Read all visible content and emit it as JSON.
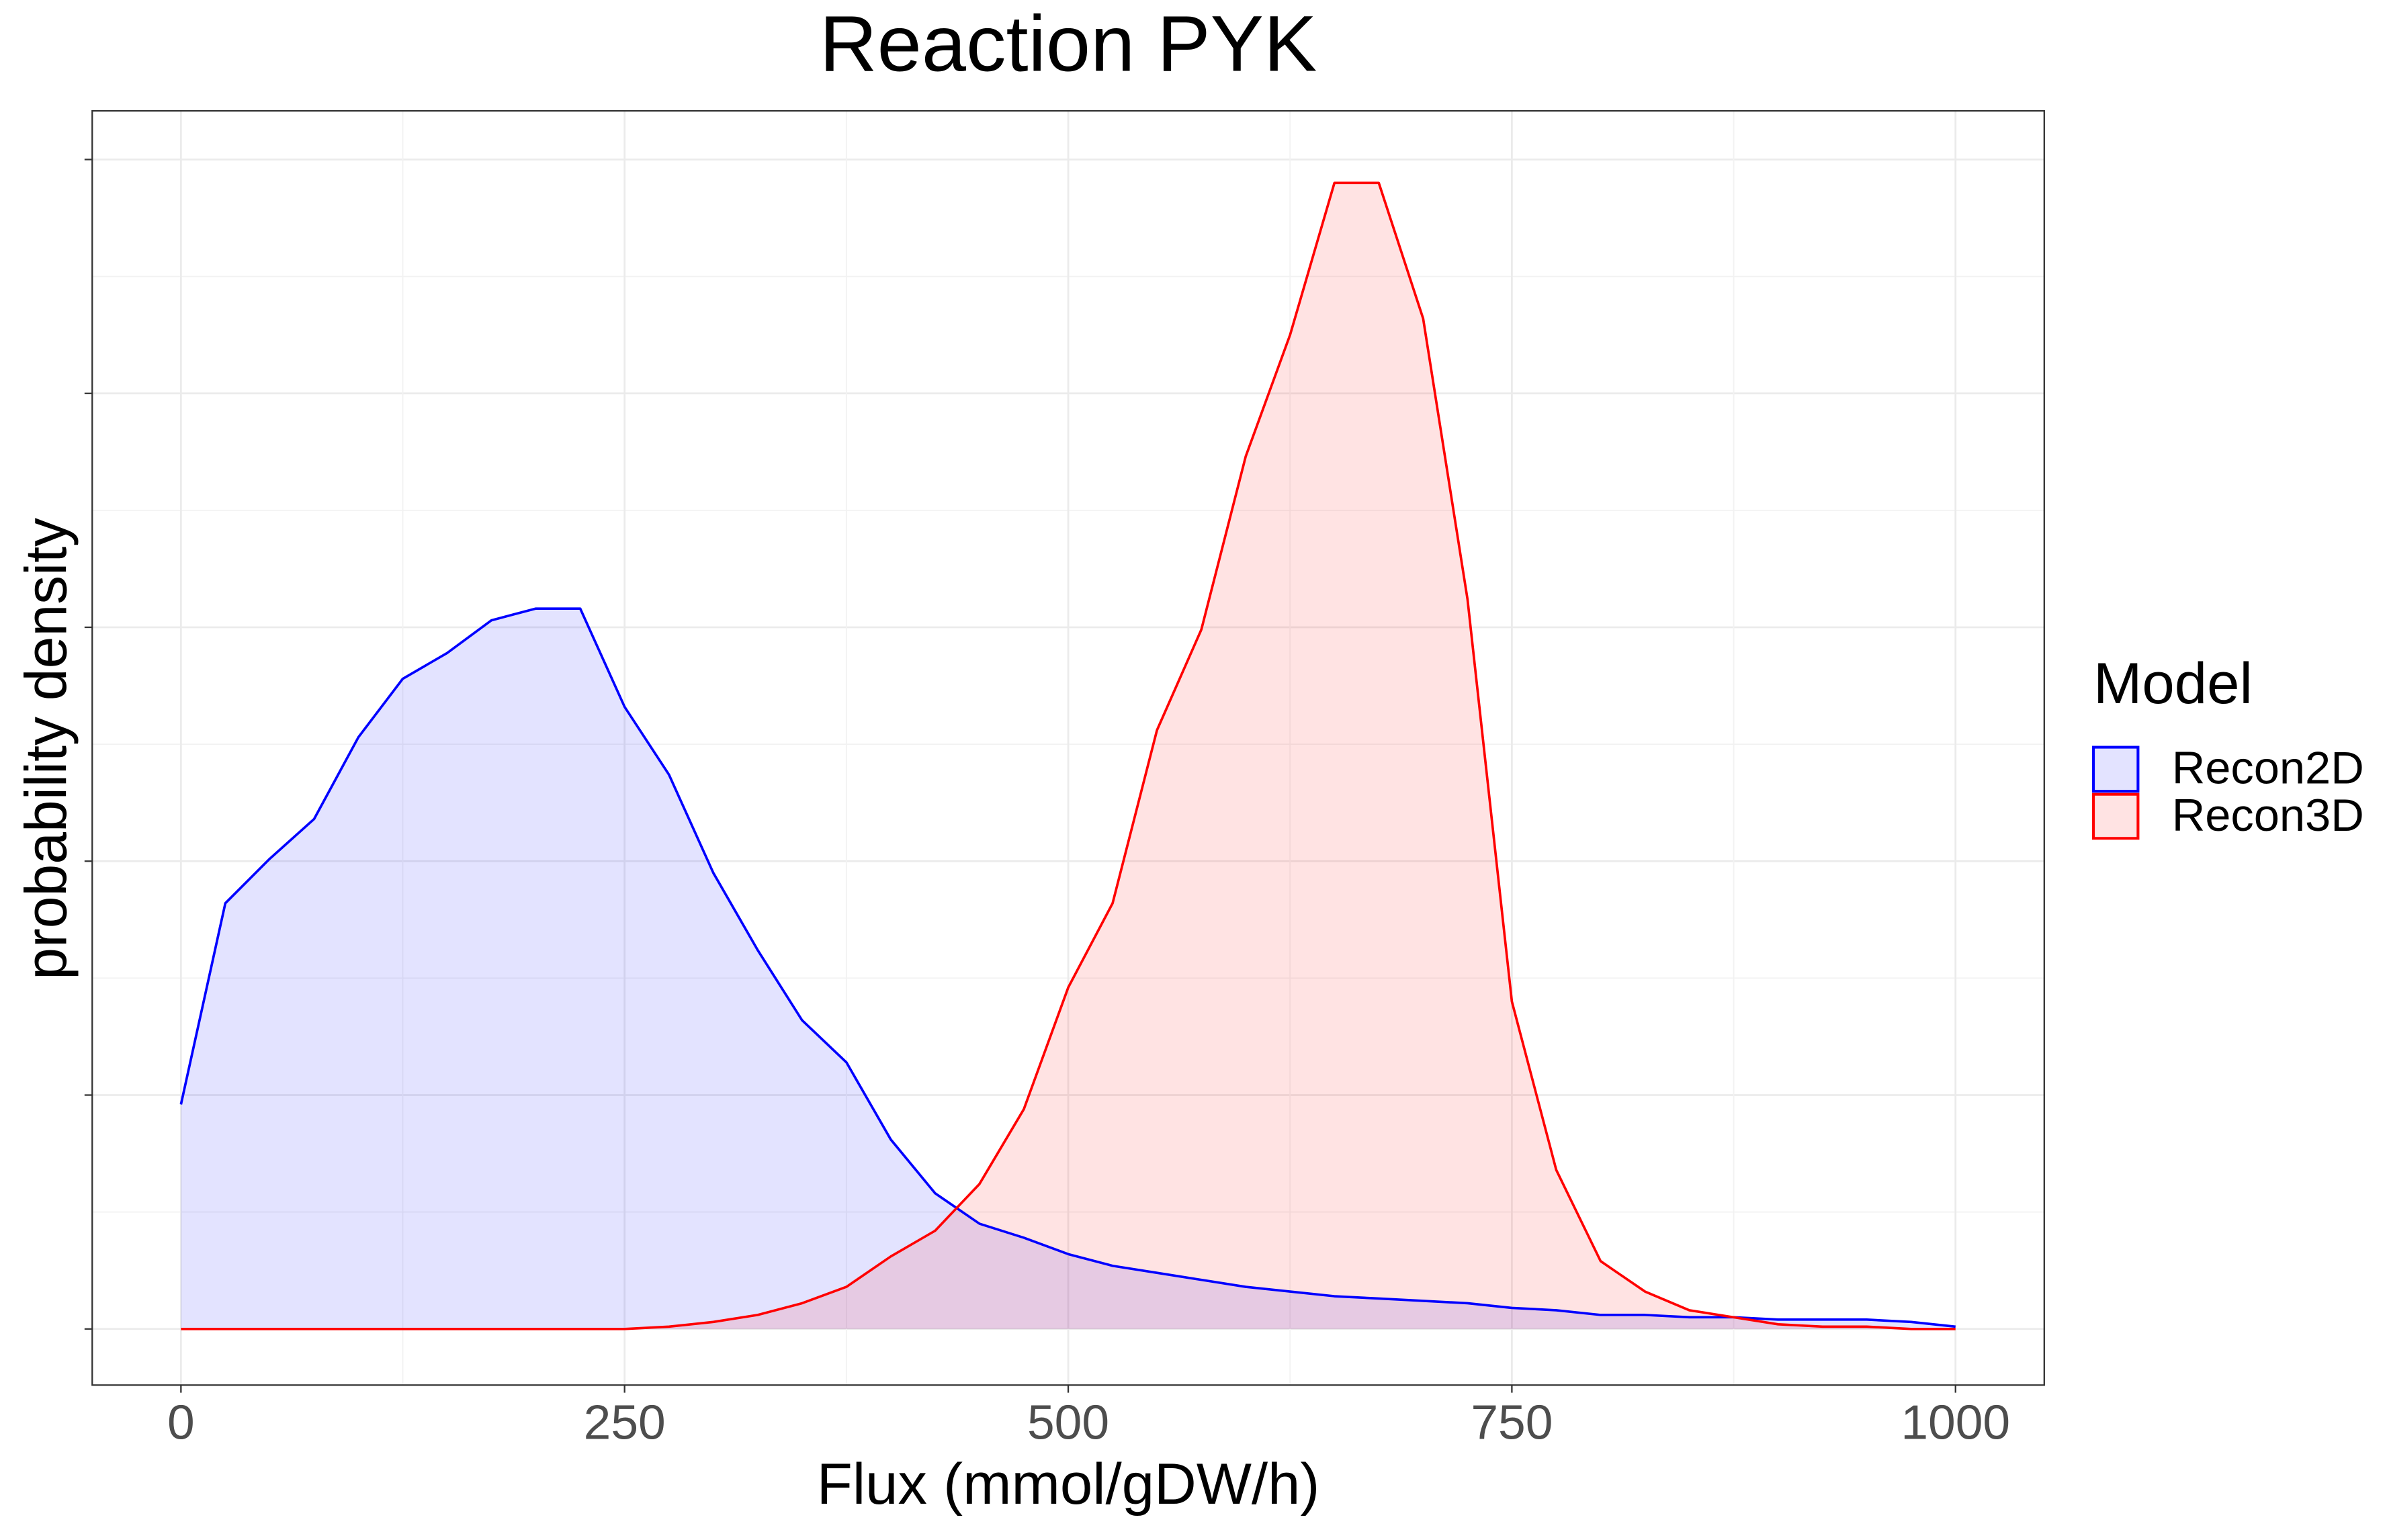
{
  "chart_data": {
    "type": "density",
    "title": "Reaction PYK",
    "x_label": "Flux (mmol/gDW/h)",
    "y_label": "probability density",
    "legend_title": "Model",
    "legend_position": "right",
    "grid": true,
    "x": [
      0,
      25,
      50,
      75,
      100,
      125,
      150,
      175,
      200,
      225,
      250,
      275,
      300,
      325,
      350,
      375,
      400,
      425,
      450,
      475,
      500,
      525,
      550,
      575,
      600,
      625,
      650,
      675,
      700,
      725,
      750,
      775,
      800,
      825,
      850,
      875,
      900,
      925,
      950,
      975,
      1000
    ],
    "series": [
      {
        "name": "Recon2D",
        "color": "#0000ff",
        "values": [
          0.00096,
          0.00182,
          0.00201,
          0.00218,
          0.00253,
          0.00278,
          0.00289,
          0.00303,
          0.00308,
          0.00308,
          0.00266,
          0.00237,
          0.00195,
          0.00162,
          0.00132,
          0.00114,
          0.00081,
          0.00058,
          0.00045,
          0.00039,
          0.00032,
          0.00027,
          0.00024,
          0.00021,
          0.00018,
          0.00016,
          0.00014,
          0.00013,
          0.00012,
          0.00011,
          9e-05,
          8e-05,
          6e-05,
          6e-05,
          5e-05,
          5e-05,
          4e-05,
          4e-05,
          4e-05,
          3e-05,
          1e-05
        ]
      },
      {
        "name": "Recon3D",
        "color": "#ff0000",
        "values": [
          0,
          0,
          0,
          0,
          0,
          0,
          0,
          0,
          0,
          0,
          0,
          1e-05,
          3e-05,
          6e-05,
          0.00011,
          0.00018,
          0.00031,
          0.00042,
          0.00062,
          0.00094,
          0.00146,
          0.00182,
          0.00256,
          0.00299,
          0.00373,
          0.00425,
          0.0049,
          0.0049,
          0.00432,
          0.00312,
          0.0014,
          0.00068,
          0.00029,
          0.00016,
          8e-05,
          5e-05,
          2e-05,
          1e-05,
          1e-05,
          0,
          0
        ]
      }
    ],
    "xlim": [
      -50,
      1050
    ],
    "xticks": [
      0,
      250,
      500,
      750,
      1000
    ],
    "ylim": [
      -0.00024,
      0.005208
    ],
    "yticks": [
      0,
      0.001,
      0.002,
      0.003,
      0.004,
      0.005
    ]
  }
}
